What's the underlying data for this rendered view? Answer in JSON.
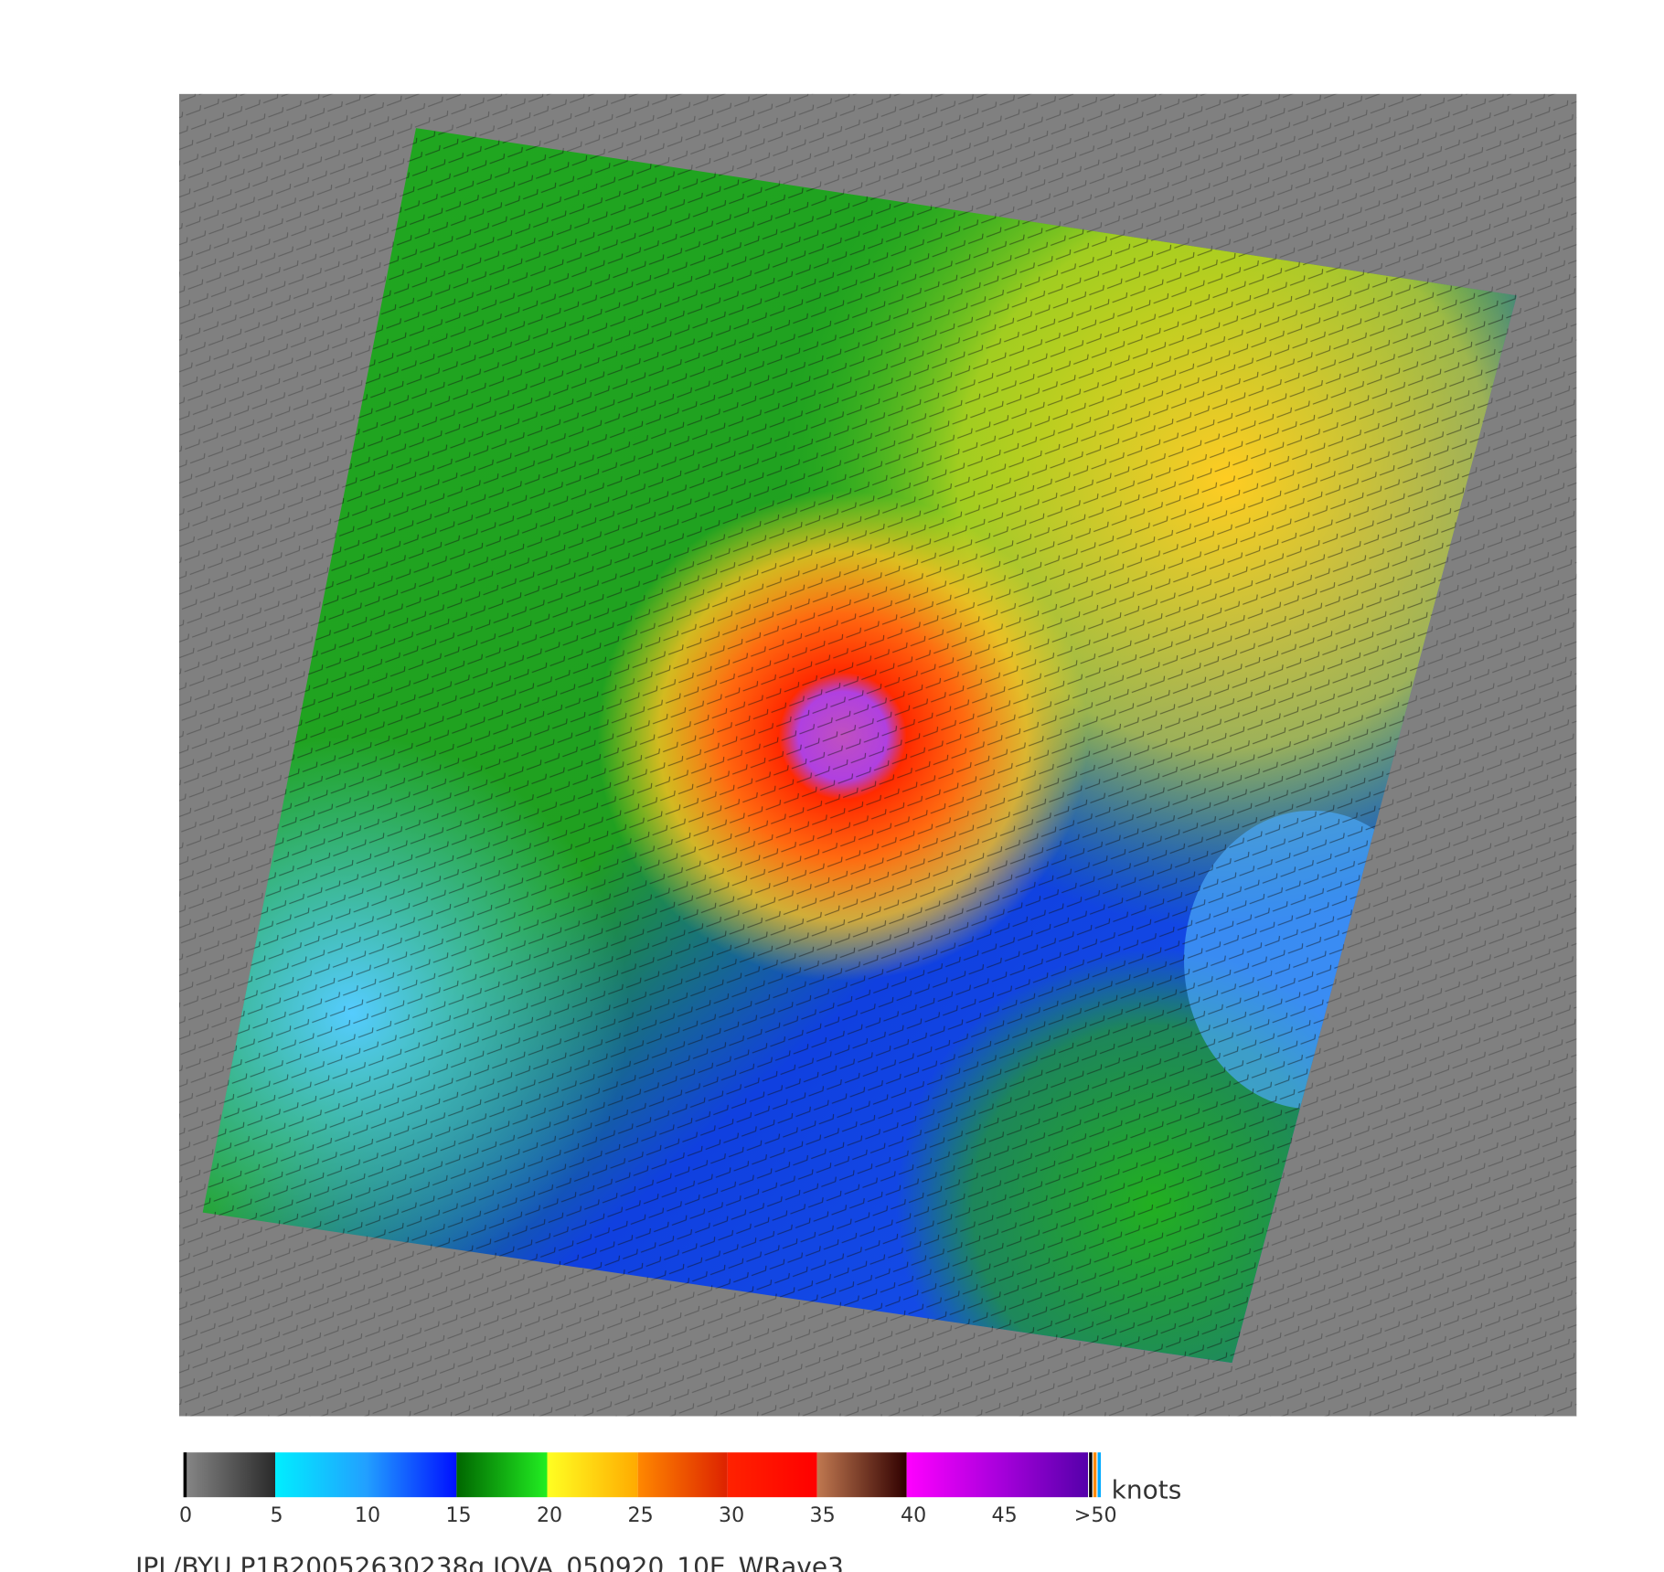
{
  "colorbar": {
    "tick_labels": [
      "0",
      "5",
      "10",
      "15",
      "20",
      "25",
      "30",
      "35",
      "40",
      "45",
      ">50"
    ],
    "unit": "knots"
  },
  "caption": "JPL/BYU  P1B20052630238q.JOVA_050920_10E_WRave3"
}
